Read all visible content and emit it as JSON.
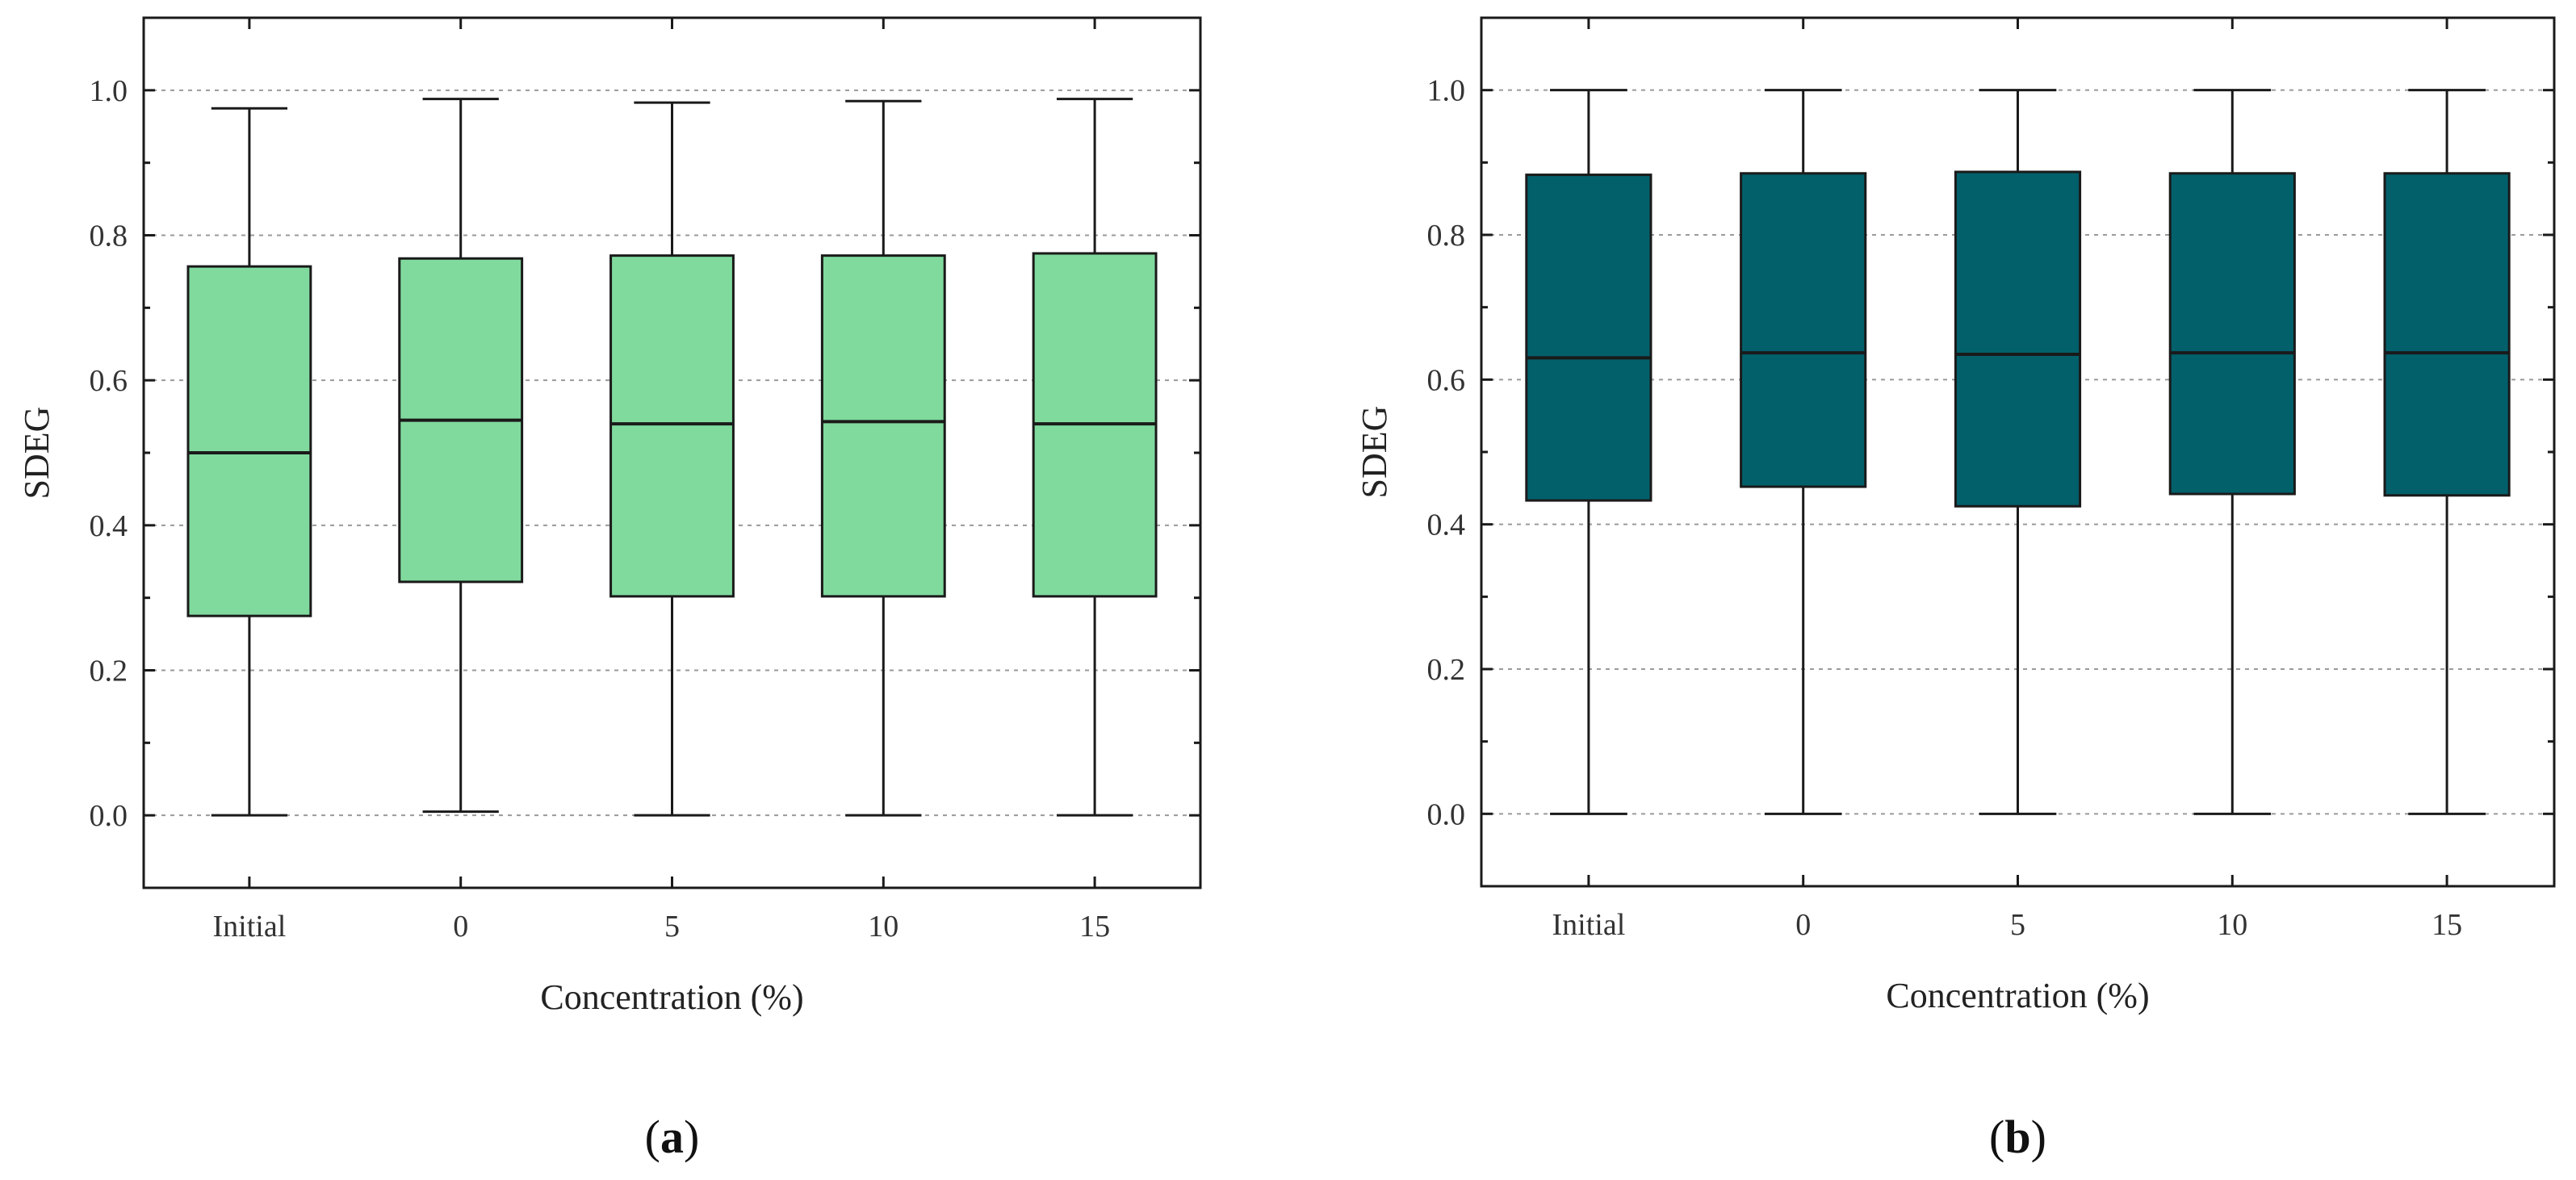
{
  "chart_data": [
    {
      "type": "box",
      "panel_label": "a",
      "categories": [
        "Initial",
        "0",
        "5",
        "10",
        "15"
      ],
      "boxes": [
        {
          "min": 0.0,
          "q1": 0.275,
          "median": 0.5,
          "q3": 0.757,
          "max": 0.975
        },
        {
          "min": 0.005,
          "q1": 0.322,
          "median": 0.545,
          "q3": 0.768,
          "max": 0.988
        },
        {
          "min": 0.0,
          "q1": 0.302,
          "median": 0.54,
          "q3": 0.772,
          "max": 0.983
        },
        {
          "min": 0.0,
          "q1": 0.302,
          "median": 0.543,
          "q3": 0.772,
          "max": 0.985
        },
        {
          "min": 0.0,
          "q1": 0.302,
          "median": 0.54,
          "q3": 0.775,
          "max": 0.988
        }
      ],
      "xlabel": "Concentration (%)",
      "ylabel": "SDEG",
      "ylim": [
        -0.1,
        1.1
      ],
      "yticks": [
        "0.0",
        "0.2",
        "0.4",
        "0.6",
        "0.8",
        "1.0"
      ],
      "ytick_values": [
        0.0,
        0.2,
        0.4,
        0.6,
        0.8,
        1.0
      ],
      "grid": true,
      "box_color": "#80da9d"
    },
    {
      "type": "box",
      "panel_label": "b",
      "categories": [
        "Initial",
        "0",
        "5",
        "10",
        "15"
      ],
      "boxes": [
        {
          "min": 0.0,
          "q1": 0.433,
          "median": 0.63,
          "q3": 0.883,
          "max": 1.0
        },
        {
          "min": 0.0,
          "q1": 0.452,
          "median": 0.637,
          "q3": 0.885,
          "max": 1.0
        },
        {
          "min": 0.0,
          "q1": 0.425,
          "median": 0.635,
          "q3": 0.887,
          "max": 1.0
        },
        {
          "min": 0.0,
          "q1": 0.442,
          "median": 0.637,
          "q3": 0.885,
          "max": 1.0
        },
        {
          "min": 0.0,
          "q1": 0.44,
          "median": 0.637,
          "q3": 0.885,
          "max": 1.0
        }
      ],
      "xlabel": "Concentration (%)",
      "ylabel": "SDEG",
      "ylim": [
        -0.1,
        1.1
      ],
      "yticks": [
        "0.0",
        "0.2",
        "0.4",
        "0.6",
        "0.8",
        "1.0"
      ],
      "ytick_values": [
        0.0,
        0.2,
        0.4,
        0.6,
        0.8,
        1.0
      ],
      "grid": true,
      "box_color": "#02606b"
    }
  ]
}
